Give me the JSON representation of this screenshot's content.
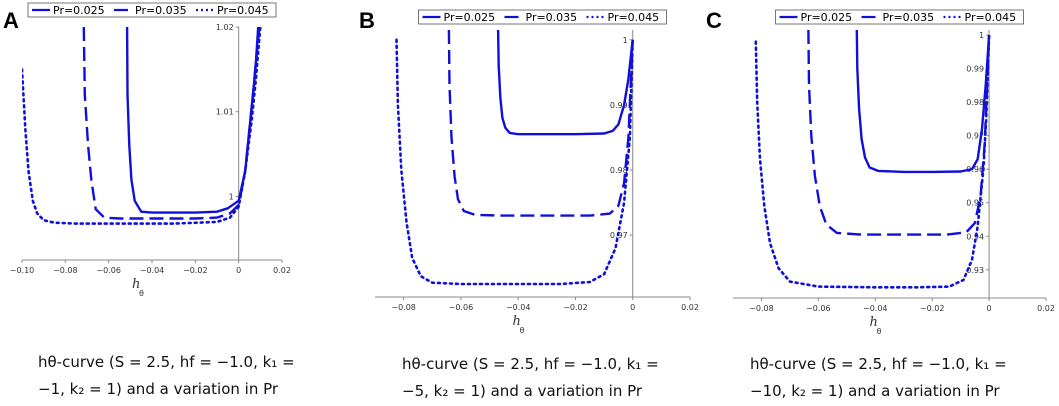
{
  "chart_data": [
    {
      "panel": "A",
      "type": "line",
      "xlabel": "h",
      "xlabel_sub": "θ",
      "xlim": [
        -0.1,
        0.02
      ],
      "ylim": [
        0.9925,
        1.02
      ],
      "xticks": [
        -0.1,
        -0.08,
        -0.06,
        -0.04,
        -0.02,
        0,
        0.02
      ],
      "xtick_labels": [
        "−0.10",
        "−0.08",
        "−0.06",
        "−0.04",
        "−0.02",
        "0",
        "0.02"
      ],
      "yticks": [
        1,
        1.01,
        1.02
      ],
      "ytick_labels": [
        "1",
        "1.01",
        "1.02"
      ],
      "legend_position": "top",
      "series": [
        {
          "name": "Pr=0.025",
          "style": "solid",
          "x": [
            -0.0515,
            -0.0513,
            -0.0505,
            -0.0495,
            -0.048,
            -0.045,
            -0.04,
            -0.03,
            -0.02,
            -0.01,
            -0.005,
            0,
            0.003,
            0.005,
            0.007,
            0.008,
            0.009
          ],
          "y": [
            1.02,
            1.012,
            1.006,
            1.002,
            0.9995,
            0.9982,
            0.9981,
            0.9981,
            0.9981,
            0.9982,
            0.9986,
            0.9995,
            1.003,
            1.008,
            1.013,
            1.016,
            1.02
          ]
        },
        {
          "name": "Pr=0.035",
          "style": "dash",
          "x": [
            -0.0715,
            -0.071,
            -0.0695,
            -0.068,
            -0.066,
            -0.062,
            -0.055,
            -0.04,
            -0.02,
            -0.01,
            -0.004,
            0,
            0.003,
            0.005,
            0.007,
            0.008,
            0.0095
          ],
          "y": [
            1.02,
            1.012,
            1.006,
            1.002,
            0.9985,
            0.9975,
            0.9974,
            0.9974,
            0.9974,
            0.9975,
            0.998,
            0.999,
            1.003,
            1.008,
            1.013,
            1.016,
            1.02
          ]
        },
        {
          "name": "Pr=0.045",
          "style": "dot",
          "x": [
            -0.1,
            -0.0985,
            -0.097,
            -0.095,
            -0.093,
            -0.09,
            -0.085,
            -0.075,
            -0.05,
            -0.03,
            -0.01,
            -0.004,
            0,
            0.003,
            0.006,
            0.008,
            0.01
          ],
          "y": [
            1.015,
            1.008,
            1.003,
            0.9995,
            0.998,
            0.9972,
            0.9969,
            0.9968,
            0.9968,
            0.9968,
            0.997,
            0.9975,
            0.9988,
            1.003,
            1.009,
            1.014,
            1.02
          ]
        }
      ]
    },
    {
      "panel": "B",
      "type": "line",
      "xlabel": "h",
      "xlabel_sub": "θ",
      "xlim": [
        -0.09,
        0.02
      ],
      "ylim": [
        0.9605,
        1.0015
      ],
      "xticks": [
        -0.08,
        -0.06,
        -0.04,
        -0.02,
        0,
        0.02
      ],
      "xtick_labels": [
        "−0.08",
        "−0.06",
        "−0.04",
        "−0.02",
        "0",
        "0.02"
      ],
      "yticks": [
        0.97,
        0.98,
        0.99,
        1
      ],
      "ytick_labels": [
        "0.97",
        "0.98",
        "0.99",
        "1"
      ],
      "legend_position": "top",
      "series": [
        {
          "name": "Pr=0.025",
          "style": "solid",
          "x": [
            -0.047,
            -0.0468,
            -0.0462,
            -0.0455,
            -0.0445,
            -0.043,
            -0.04,
            -0.03,
            -0.02,
            -0.01,
            -0.007,
            -0.005,
            -0.003,
            -0.0015,
            0
          ],
          "y": [
            1.0015,
            0.996,
            0.991,
            0.988,
            0.9865,
            0.9857,
            0.9855,
            0.9855,
            0.9855,
            0.9856,
            0.986,
            0.987,
            0.99,
            0.994,
            1.0
          ]
        },
        {
          "name": "Pr=0.035",
          "style": "dash",
          "x": [
            -0.0642,
            -0.064,
            -0.0633,
            -0.0622,
            -0.061,
            -0.059,
            -0.055,
            -0.045,
            -0.03,
            -0.015,
            -0.008,
            -0.005,
            -0.003,
            -0.0015,
            0
          ],
          "y": [
            1.0015,
            0.993,
            0.985,
            0.979,
            0.9755,
            0.9737,
            0.9731,
            0.973,
            0.973,
            0.973,
            0.9733,
            0.9745,
            0.978,
            0.985,
            1.0
          ]
        },
        {
          "name": "Pr=0.045",
          "style": "dot",
          "x": [
            -0.0825,
            -0.082,
            -0.0808,
            -0.079,
            -0.077,
            -0.074,
            -0.07,
            -0.06,
            -0.04,
            -0.025,
            -0.015,
            -0.01,
            -0.006,
            -0.003,
            -0.001,
            0
          ],
          "y": [
            1.0,
            0.99,
            0.98,
            0.972,
            0.9665,
            0.9637,
            0.9627,
            0.9625,
            0.9625,
            0.9625,
            0.9628,
            0.964,
            0.968,
            0.975,
            0.985,
            1.0
          ]
        }
      ]
    },
    {
      "panel": "C",
      "type": "line",
      "xlabel": "h",
      "xlabel_sub": "θ",
      "xlim": [
        -0.09,
        0.02
      ],
      "ylim": [
        0.9216,
        1.0015
      ],
      "xticks": [
        -0.08,
        -0.06,
        -0.04,
        -0.02,
        0,
        0.02
      ],
      "xtick_labels": [
        "−0.08",
        "−0.06",
        "−0.04",
        "−0.02",
        "0",
        "0.02"
      ],
      "yticks": [
        0.93,
        0.94,
        0.95,
        0.96,
        0.97,
        0.98,
        0.99,
        1
      ],
      "ytick_labels": [
        "0.93",
        "0.94",
        "0.95",
        "0.96",
        "0.97",
        "0.98",
        "0.99",
        "1"
      ],
      "legend_position": "top",
      "series": [
        {
          "name": "Pr=0.025",
          "style": "solid",
          "x": [
            -0.0465,
            -0.0463,
            -0.0457,
            -0.0448,
            -0.0436,
            -0.042,
            -0.039,
            -0.03,
            -0.02,
            -0.01,
            -0.006,
            -0.004,
            -0.0025,
            -0.0012,
            0
          ],
          "y": [
            1.0015,
            0.99,
            0.978,
            0.969,
            0.9635,
            0.9605,
            0.9595,
            0.9592,
            0.9592,
            0.9593,
            0.96,
            0.963,
            0.972,
            0.985,
            1.0
          ]
        },
        {
          "name": "Pr=0.035",
          "style": "dash",
          "x": [
            -0.0635,
            -0.0633,
            -0.0625,
            -0.0612,
            -0.0595,
            -0.0572,
            -0.0535,
            -0.045,
            -0.03,
            -0.015,
            -0.008,
            -0.005,
            -0.003,
            -0.0015,
            0
          ],
          "y": [
            1.0015,
            0.985,
            0.97,
            0.958,
            0.949,
            0.9435,
            0.941,
            0.9405,
            0.9405,
            0.9405,
            0.9412,
            0.944,
            0.952,
            0.968,
            1.0
          ]
        },
        {
          "name": "Pr=0.045",
          "style": "dot",
          "x": [
            -0.082,
            -0.0815,
            -0.0805,
            -0.079,
            -0.077,
            -0.074,
            -0.07,
            -0.06,
            -0.04,
            -0.025,
            -0.014,
            -0.009,
            -0.006,
            -0.004,
            -0.002,
            -0.001,
            0
          ],
          "y": [
            0.998,
            0.98,
            0.963,
            0.949,
            0.938,
            0.9305,
            0.9265,
            0.925,
            0.9248,
            0.9248,
            0.925,
            0.927,
            0.933,
            0.943,
            0.96,
            0.975,
            1.0
          ]
        }
      ]
    }
  ],
  "captions": [
    {
      "panel": "A",
      "line1": "hθ-curve (S = 2.5,  hf = −1.0, k₁ =",
      "line2": "−1, k₂ = 1) and a variation in  Pr"
    },
    {
      "panel": "B",
      "line1": "hθ-curve (S = 2.5,  hf = −1.0, k₁ =",
      "line2": "−5, k₂ = 1) and a variation in  Pr"
    },
    {
      "panel": "C",
      "line1": "hθ-curve (S = 2.5,  hf = −1.0, k₁ =",
      "line2": "−10, k₂ = 1) and a variation in  Pr"
    }
  ],
  "colors": {
    "line": "#1010d8",
    "axis": "#888888",
    "text": "#333333"
  }
}
